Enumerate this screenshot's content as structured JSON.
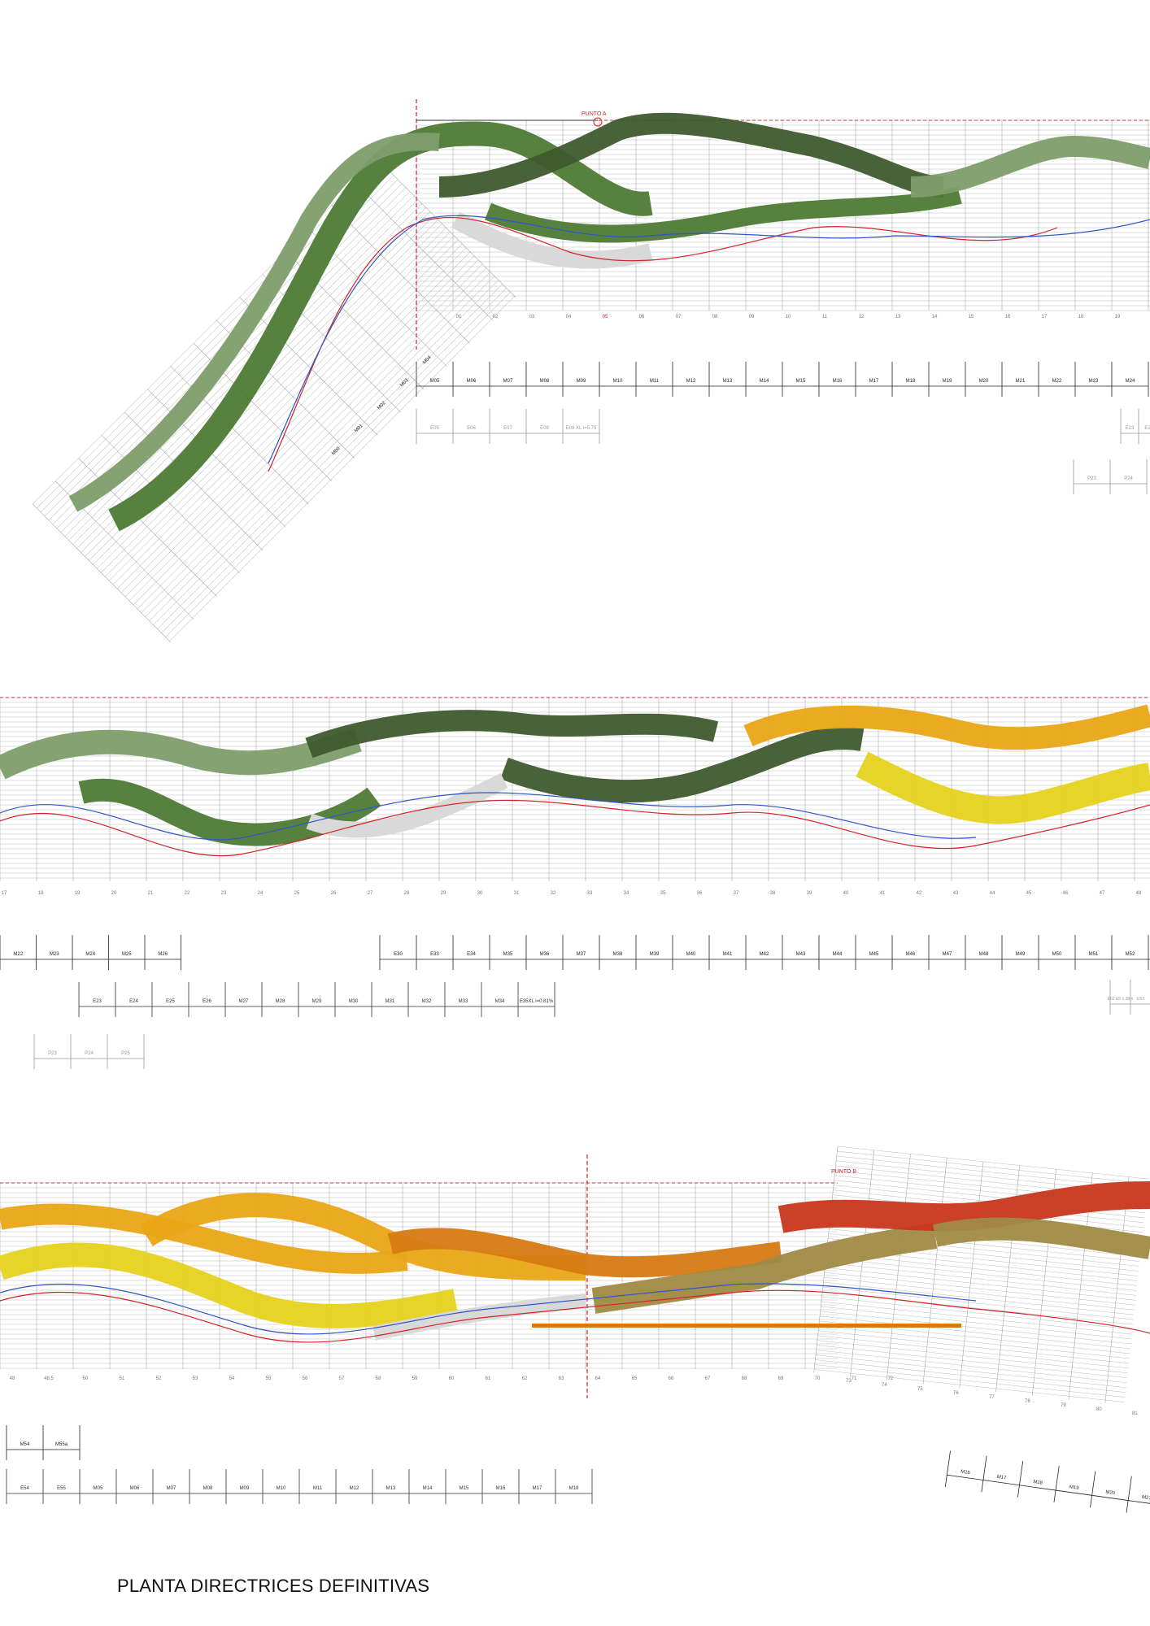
{
  "title": "PLANTA DIRECTRICES DEFINITIVAS",
  "palette": {
    "green_dark": "#3f5a2e",
    "green": "#4e7a35",
    "green_light": "#7e9d6c",
    "orange": "#e9a516",
    "yellow": "#e6d21c",
    "orange_dark": "#d67a12",
    "olive": "#a08a45",
    "red": "#c8361e",
    "gray_band": "#d9d9d9",
    "red_line": "#d2242a",
    "blue_line": "#2f55c8"
  },
  "annotations": {
    "punto_a": "PUNTO A",
    "punto_b": "PUNTO B"
  },
  "panel1": {
    "stations": [
      "01",
      "02",
      "03",
      "04",
      "05",
      "06",
      "07",
      "08",
      "09",
      "10",
      "11",
      "12",
      "13",
      "14",
      "15",
      "16",
      "17",
      "18",
      "19",
      "20"
    ],
    "m_row": [
      "M05",
      "M06",
      "M07",
      "M08",
      "M09",
      "M10",
      "M11",
      "M12",
      "M13",
      "M14",
      "M15",
      "M16",
      "M17",
      "M18",
      "M19",
      "M20",
      "M21",
      "M22",
      "M23",
      "M24"
    ],
    "e_row": [
      "E05",
      "E06",
      "E07",
      "E08",
      "E09 XL i=5.75"
    ],
    "e_row_right": [
      "E23",
      "E2"
    ],
    "p_row": [
      "P23",
      "P24"
    ],
    "diagonal_m": [
      "M00",
      "M01",
      "M02",
      "M03",
      "M04"
    ]
  },
  "panel2": {
    "stations": [
      "17",
      "18",
      "19",
      "20",
      "21",
      "22",
      "23",
      "24",
      "25",
      "26",
      "27",
      "28",
      "29",
      "30",
      "31",
      "32",
      "33",
      "34",
      "35",
      "36",
      "37",
      "38",
      "39",
      "40",
      "41",
      "42",
      "43",
      "44",
      "45",
      "46",
      "47",
      "48"
    ],
    "m_row_left": [
      "M22",
      "M23",
      "M24",
      "M25",
      "M26"
    ],
    "m_row_right": [
      "E30",
      "E33",
      "E34",
      "M35",
      "M36",
      "M37",
      "M38",
      "M39",
      "M40",
      "M41",
      "M42",
      "M43",
      "M44",
      "M45",
      "M46",
      "M47",
      "M48",
      "M49",
      "M50",
      "M51",
      "M52",
      "M53"
    ],
    "row2": [
      "E23",
      "E24",
      "E25",
      "E26",
      "M27",
      "M28",
      "M29",
      "M30",
      "M31",
      "M32",
      "M33",
      "M34",
      "E35XL i=0.81%"
    ],
    "row2_right": [
      "E52 E5 1.38m",
      "E53"
    ],
    "p_row": [
      "P23",
      "P24",
      "P25"
    ]
  },
  "panel3": {
    "stations": [
      "48",
      "48.5",
      "50",
      "51",
      "52",
      "53",
      "54",
      "55",
      "56",
      "57",
      "58",
      "59",
      "60",
      "61",
      "62",
      "63",
      "64",
      "65",
      "66",
      "67",
      "68",
      "69",
      "70",
      "71",
      "72"
    ],
    "stations_rotated": [
      "73",
      "74",
      "75",
      "76",
      "77",
      "78",
      "79",
      "80",
      "81"
    ],
    "m_row": [
      "M54",
      "M55a"
    ],
    "row2": [
      "E54",
      "E55",
      "M05",
      "M06",
      "M07",
      "M08",
      "M09",
      "M10",
      "M11",
      "M12",
      "M13",
      "M14",
      "M15",
      "M16",
      "M17",
      "M18"
    ],
    "rotated_row": [
      "M16",
      "M17",
      "M18",
      "M19",
      "M20",
      "M21"
    ]
  }
}
